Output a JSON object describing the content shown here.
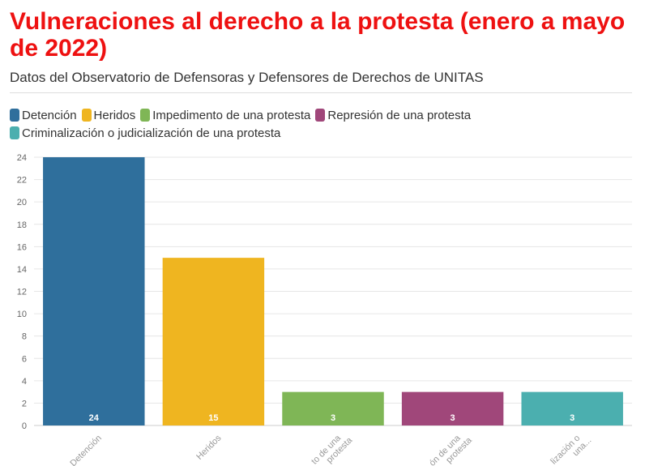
{
  "title": "Vulneraciones al derecho a la protesta (enero a mayo de 2022)",
  "subtitle": "Datos del Observatorio de Defensoras y Defensores de Derechos de UNITAS",
  "chart_data": {
    "type": "bar",
    "categories": [
      "Detención",
      "Heridos",
      "Impedimento de una protesta",
      "Represión de una protesta",
      "Criminalización o judicialización de una protesta"
    ],
    "category_tick_labels": [
      [
        "Detención"
      ],
      [
        "Heridos"
      ],
      [
        "to de una",
        "protesta"
      ],
      [
        "ón de una",
        "protesta"
      ],
      [
        "lización o",
        "una..."
      ]
    ],
    "values": [
      24,
      15,
      3,
      3,
      3
    ],
    "colors": [
      "#2f6f9c",
      "#efb520",
      "#7fb656",
      "#a0477a",
      "#4bafaf"
    ],
    "legend": [
      {
        "label": "Detención",
        "color": "#2f6f9c"
      },
      {
        "label": "Heridos",
        "color": "#efb520"
      },
      {
        "label": "Impedimento de una protesta",
        "color": "#7fb656"
      },
      {
        "label": "Represión de una protesta",
        "color": "#a0477a"
      },
      {
        "label": "Criminalización o judicialización de una protesta",
        "color": "#4bafaf"
      }
    ],
    "yticks": [
      0,
      2,
      4,
      6,
      8,
      10,
      12,
      14,
      16,
      18,
      20,
      22,
      24
    ],
    "ylim": [
      0,
      24
    ],
    "grid": true,
    "legend_position": "top-left"
  }
}
